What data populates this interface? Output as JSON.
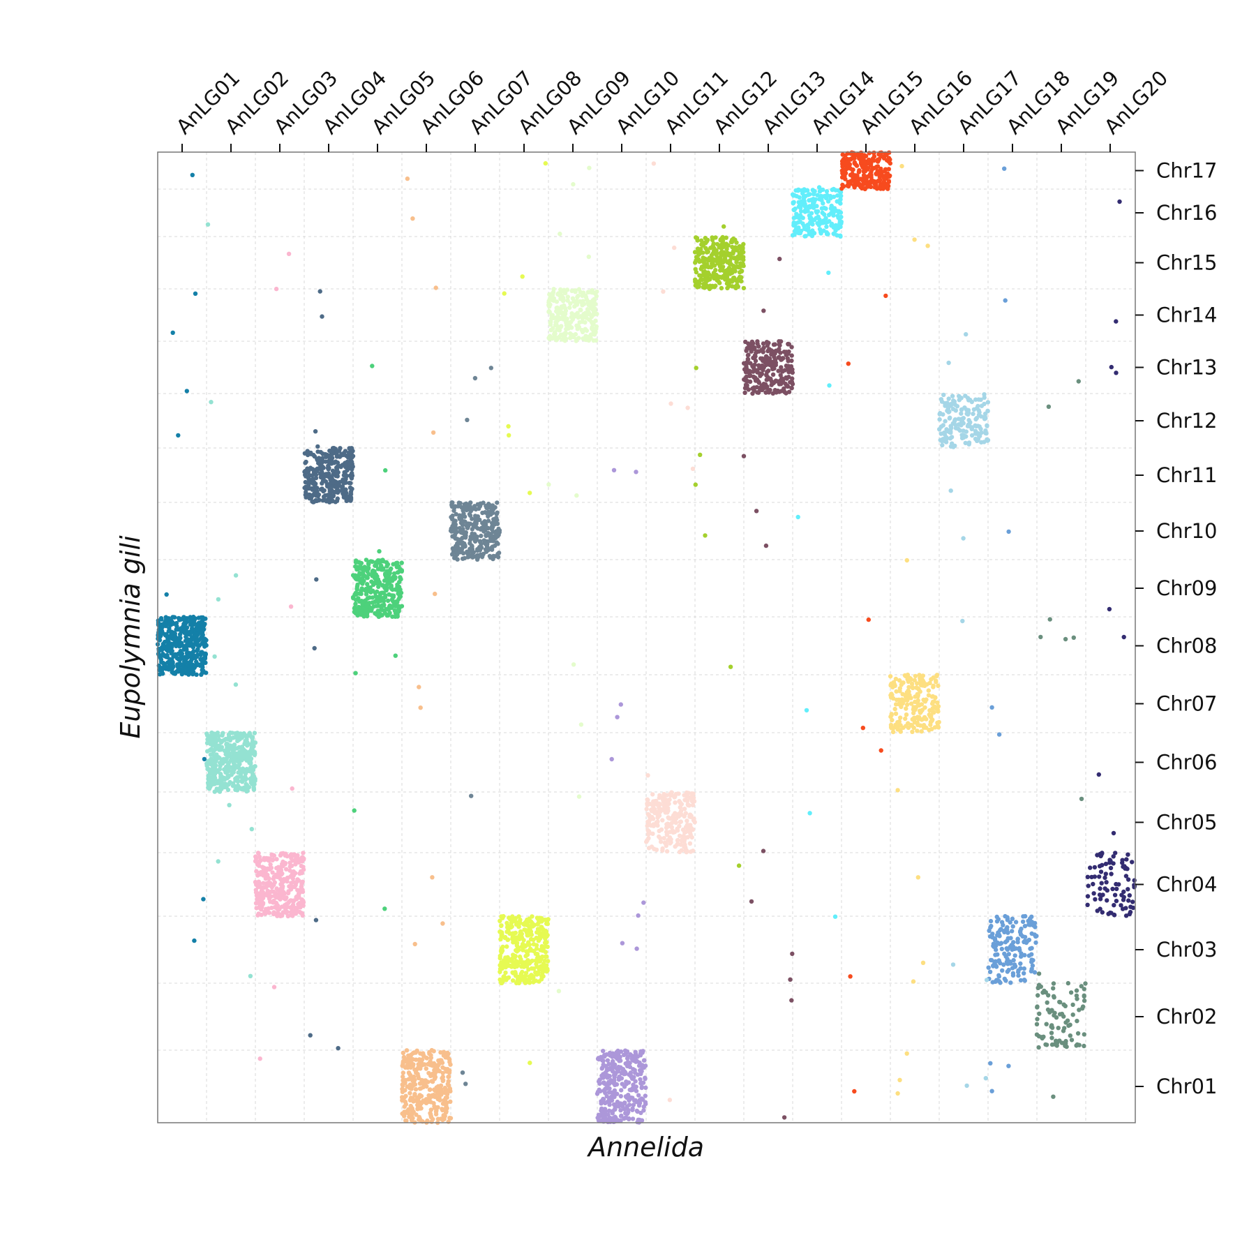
{
  "chart_data": {
    "type": "scatter",
    "xlabel": "Annelida",
    "ylabel": "Eupolymnia gili",
    "x_categories": [
      "AnLG01",
      "AnLG02",
      "AnLG03",
      "AnLG04",
      "AnLG05",
      "AnLG06",
      "AnLG07",
      "AnLG08",
      "AnLG09",
      "AnLG10",
      "AnLG11",
      "AnLG12",
      "AnLG13",
      "AnLG14",
      "AnLG15",
      "AnLG16",
      "AnLG17",
      "AnLG18",
      "AnLG19",
      "AnLG20"
    ],
    "y_categories": [
      "Chr01",
      "Chr02",
      "Chr03",
      "Chr04",
      "Chr05",
      "Chr06",
      "Chr07",
      "Chr08",
      "Chr09",
      "Chr10",
      "Chr11",
      "Chr12",
      "Chr13",
      "Chr14",
      "Chr15",
      "Chr16",
      "Chr17"
    ],
    "grid": true,
    "clusters": [
      {
        "x": "AnLG01",
        "y": "Chr08",
        "color": "#1480a8",
        "density": 420
      },
      {
        "x": "AnLG02",
        "y": "Chr06",
        "color": "#94e2d2",
        "density": 420
      },
      {
        "x": "AnLG03",
        "y": "Chr04",
        "color": "#fbb6cf",
        "density": 330
      },
      {
        "x": "AnLG04",
        "y": "Chr11",
        "color": "#4e6b87",
        "density": 310
      },
      {
        "x": "AnLG05",
        "y": "Chr09",
        "color": "#4dd17b",
        "density": 320
      },
      {
        "x": "AnLG06",
        "y": "Chr01",
        "color": "#f8bf8c",
        "density": 330
      },
      {
        "x": "AnLG07",
        "y": "Chr10",
        "color": "#6e8595",
        "density": 300
      },
      {
        "x": "AnLG08",
        "y": "Chr03",
        "color": "#e6fa52",
        "density": 330
      },
      {
        "x": "AnLG09",
        "y": "Chr14",
        "color": "#e4fccc",
        "density": 250
      },
      {
        "x": "AnLG10",
        "y": "Chr01",
        "color": "#ac97d9",
        "density": 300
      },
      {
        "x": "AnLG11",
        "y": "Chr05",
        "color": "#fdddd5",
        "density": 230
      },
      {
        "x": "AnLG12",
        "y": "Chr15",
        "color": "#a4d02d",
        "density": 300
      },
      {
        "x": "AnLG13",
        "y": "Chr13",
        "color": "#7c5063",
        "density": 250
      },
      {
        "x": "AnLG14",
        "y": "Chr16",
        "color": "#62eefb",
        "density": 220
      },
      {
        "x": "AnLG15",
        "y": "Chr17",
        "color": "#f74b1e",
        "density": 240
      },
      {
        "x": "AnLG16",
        "y": "Chr07",
        "color": "#fddf81",
        "density": 200
      },
      {
        "x": "AnLG17",
        "y": "Chr12",
        "color": "#a5d6e7",
        "density": 170
      },
      {
        "x": "AnLG18",
        "y": "Chr03",
        "color": "#6a9fd8",
        "density": 170
      },
      {
        "x": "AnLG19",
        "y": "Chr02",
        "color": "#6a8f7e",
        "density": 90
      },
      {
        "x": "AnLG20",
        "y": "Chr04",
        "color": "#332c71",
        "density": 90
      }
    ]
  }
}
